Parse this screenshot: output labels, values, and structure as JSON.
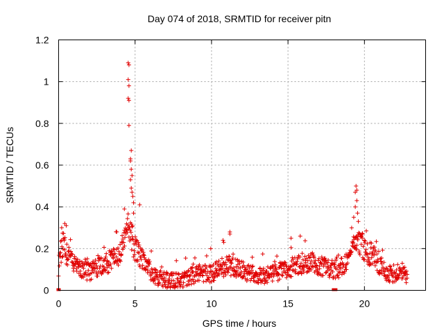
{
  "chart_data": {
    "type": "scatter",
    "title": "Day 074 of 2018, SRMTID for receiver pitn",
    "xlabel": "GPS time / hours",
    "ylabel": "SRMTID / TECUs",
    "xlim": [
      0,
      24
    ],
    "ylim": [
      0,
      1.2
    ],
    "xticks": [
      0,
      5,
      10,
      15,
      20
    ],
    "xtick_labels": [
      "0",
      "5",
      "10",
      "15",
      "20"
    ],
    "yticks": [
      0,
      0.2,
      0.4,
      0.6,
      0.8,
      1,
      1.2
    ],
    "ytick_labels": [
      "0",
      "0.2",
      "0.4",
      "0.6",
      "0.8",
      "1",
      "1.2"
    ],
    "grid": true,
    "marker": "+",
    "color": "#e00000",
    "series": [
      {
        "name": "SRMTID",
        "profile_points": [
          [
            0.0,
            0.14
          ],
          [
            0.3,
            0.22
          ],
          [
            0.5,
            0.17
          ],
          [
            1.0,
            0.12
          ],
          [
            1.5,
            0.1
          ],
          [
            2.0,
            0.09
          ],
          [
            2.5,
            0.11
          ],
          [
            3.0,
            0.12
          ],
          [
            3.5,
            0.15
          ],
          [
            4.0,
            0.18
          ],
          [
            4.4,
            0.24
          ],
          [
            4.6,
            0.32
          ],
          [
            4.8,
            0.24
          ],
          [
            5.0,
            0.2
          ],
          [
            5.5,
            0.14
          ],
          [
            6.0,
            0.09
          ],
          [
            6.5,
            0.06
          ],
          [
            7.0,
            0.05
          ],
          [
            7.5,
            0.05
          ],
          [
            8.0,
            0.05
          ],
          [
            8.5,
            0.06
          ],
          [
            9.0,
            0.08
          ],
          [
            9.5,
            0.08
          ],
          [
            10.0,
            0.08
          ],
          [
            10.5,
            0.1
          ],
          [
            11.0,
            0.12
          ],
          [
            11.5,
            0.11
          ],
          [
            12.0,
            0.1
          ],
          [
            12.5,
            0.08
          ],
          [
            13.0,
            0.07
          ],
          [
            13.5,
            0.07
          ],
          [
            14.0,
            0.08
          ],
          [
            14.5,
            0.09
          ],
          [
            15.0,
            0.1
          ],
          [
            15.5,
            0.12
          ],
          [
            16.0,
            0.13
          ],
          [
            16.5,
            0.14
          ],
          [
            17.0,
            0.12
          ],
          [
            17.5,
            0.11
          ],
          [
            18.0,
            0.1
          ],
          [
            18.5,
            0.11
          ],
          [
            19.0,
            0.15
          ],
          [
            19.4,
            0.24
          ],
          [
            19.6,
            0.22
          ],
          [
            20.0,
            0.19
          ],
          [
            20.5,
            0.17
          ],
          [
            21.0,
            0.12
          ],
          [
            21.5,
            0.08
          ],
          [
            22.0,
            0.08
          ],
          [
            22.5,
            0.08
          ],
          [
            22.8,
            0.07
          ]
        ],
        "spread": 0.05,
        "highlights": [
          [
            4.55,
            1.09
          ],
          [
            4.6,
            1.08
          ],
          [
            4.55,
            1.01
          ],
          [
            4.6,
            0.98
          ],
          [
            4.55,
            0.92
          ],
          [
            4.6,
            0.91
          ],
          [
            4.6,
            0.79
          ],
          [
            4.75,
            0.67
          ],
          [
            4.7,
            0.63
          ],
          [
            4.7,
            0.62
          ],
          [
            4.75,
            0.58
          ],
          [
            4.8,
            0.55
          ],
          [
            4.7,
            0.53
          ],
          [
            4.75,
            0.49
          ],
          [
            4.8,
            0.47
          ],
          [
            4.85,
            0.45
          ],
          [
            4.9,
            0.42
          ],
          [
            5.3,
            0.41
          ],
          [
            4.3,
            0.39
          ],
          [
            4.9,
            0.37
          ],
          [
            19.45,
            0.5
          ],
          [
            19.5,
            0.48
          ],
          [
            19.4,
            0.47
          ],
          [
            19.5,
            0.43
          ],
          [
            19.4,
            0.4
          ],
          [
            19.55,
            0.37
          ],
          [
            19.3,
            0.35
          ],
          [
            19.6,
            0.33
          ],
          [
            10.75,
            0.24
          ],
          [
            10.8,
            0.23
          ],
          [
            11.2,
            0.28
          ],
          [
            11.2,
            0.27
          ],
          [
            15.2,
            0.25
          ],
          [
            15.8,
            0.26
          ],
          [
            9.95,
            0.2
          ],
          [
            0.4,
            0.32
          ],
          [
            0.5,
            0.31
          ],
          [
            0.2,
            0.3
          ],
          [
            3.8,
            0.28
          ]
        ],
        "end_markers": [
          [
            0.0,
            0.0
          ],
          [
            18.05,
            0.0
          ]
        ]
      }
    ]
  }
}
